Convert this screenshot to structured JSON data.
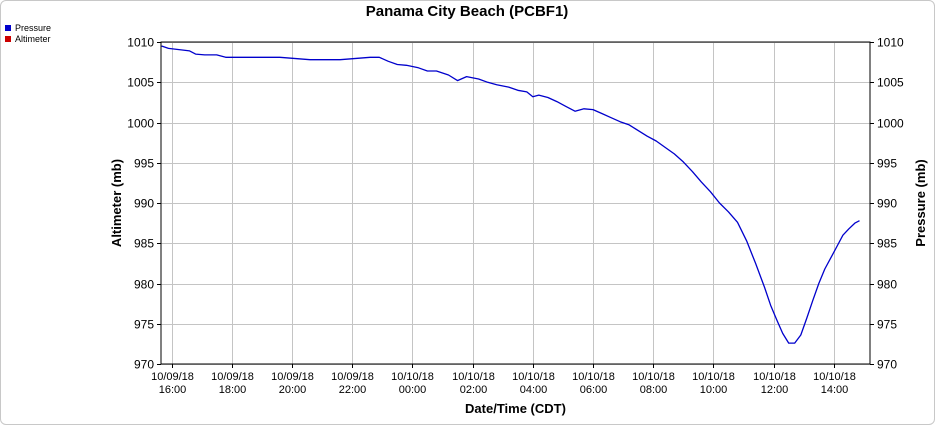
{
  "chart_data": {
    "type": "line",
    "title": "Panama City Beach (PCBF1)",
    "xlabel": "Date/Time (CDT)",
    "ylabel_left": "Altimeter (mb)",
    "ylabel_right": "Pressure (mb)",
    "ylim": [
      970,
      1010
    ],
    "yticks": [
      1010,
      1005,
      1000,
      995,
      990,
      985,
      980,
      975,
      970
    ],
    "xlim_hours": [
      15.65,
      39.2
    ],
    "x_units": "hours since 10/09/18 00:00 CDT",
    "xticks": [
      {
        "hour": 16,
        "date": "10/09/18",
        "time": "16:00"
      },
      {
        "hour": 18,
        "date": "10/09/18",
        "time": "18:00"
      },
      {
        "hour": 20,
        "date": "10/09/18",
        "time": "20:00"
      },
      {
        "hour": 22,
        "date": "10/09/18",
        "time": "22:00"
      },
      {
        "hour": 24,
        "date": "10/10/18",
        "time": "00:00"
      },
      {
        "hour": 26,
        "date": "10/10/18",
        "time": "02:00"
      },
      {
        "hour": 28,
        "date": "10/10/18",
        "time": "04:00"
      },
      {
        "hour": 30,
        "date": "10/10/18",
        "time": "06:00"
      },
      {
        "hour": 32,
        "date": "10/10/18",
        "time": "08:00"
      },
      {
        "hour": 34,
        "date": "10/10/18",
        "time": "10:00"
      },
      {
        "hour": 36,
        "date": "10/10/18",
        "time": "12:00"
      },
      {
        "hour": 38,
        "date": "10/10/18",
        "time": "14:00"
      }
    ],
    "grid": true,
    "legend_position": "top-left",
    "series": [
      {
        "name": "Pressure",
        "color": "#0000cc",
        "x": [
          15.67,
          15.9,
          16.6,
          16.8,
          17.1,
          17.5,
          17.8,
          18.6,
          19.6,
          20.6,
          21.6,
          22.6,
          22.9,
          23.2,
          23.5,
          23.8,
          24.2,
          24.5,
          24.8,
          25.2,
          25.5,
          25.8,
          26.2,
          26.5,
          26.8,
          27.2,
          27.5,
          27.8,
          28.0,
          28.2,
          28.5,
          28.8,
          29.1,
          29.4,
          29.7,
          30.0,
          30.3,
          30.6,
          30.9,
          31.2,
          31.5,
          31.8,
          32.1,
          32.4,
          32.7,
          33.0,
          33.3,
          33.6,
          33.9,
          34.2,
          34.5,
          34.8,
          35.1,
          35.4,
          35.7,
          35.9,
          36.1,
          36.3,
          36.5,
          36.7,
          36.9,
          37.1,
          37.3,
          37.5,
          37.7,
          37.9,
          38.1,
          38.3,
          38.5,
          38.7,
          38.85
        ],
        "values": [
          1009.5,
          1009.2,
          1008.9,
          1008.5,
          1008.4,
          1008.4,
          1008.1,
          1008.1,
          1008.1,
          1007.8,
          1007.8,
          1008.1,
          1008.1,
          1007.6,
          1007.2,
          1007.1,
          1006.8,
          1006.4,
          1006.4,
          1005.9,
          1005.2,
          1005.7,
          1005.4,
          1005.0,
          1004.7,
          1004.4,
          1004.0,
          1003.8,
          1003.2,
          1003.4,
          1003.1,
          1002.6,
          1002.0,
          1001.4,
          1001.7,
          1001.6,
          1001.1,
          1000.6,
          1000.1,
          999.7,
          999.0,
          998.3,
          997.7,
          996.9,
          996.1,
          995.1,
          993.9,
          992.6,
          991.4,
          990.0,
          988.9,
          987.6,
          985.3,
          982.5,
          979.5,
          977.3,
          975.5,
          973.8,
          972.6,
          972.6,
          973.6,
          975.7,
          977.9,
          980.0,
          981.8,
          983.2,
          984.6,
          986.0,
          986.8,
          987.5,
          987.8
        ]
      },
      {
        "name": "Altimeter",
        "color": "#cc0000",
        "x": [],
        "values": []
      }
    ]
  }
}
